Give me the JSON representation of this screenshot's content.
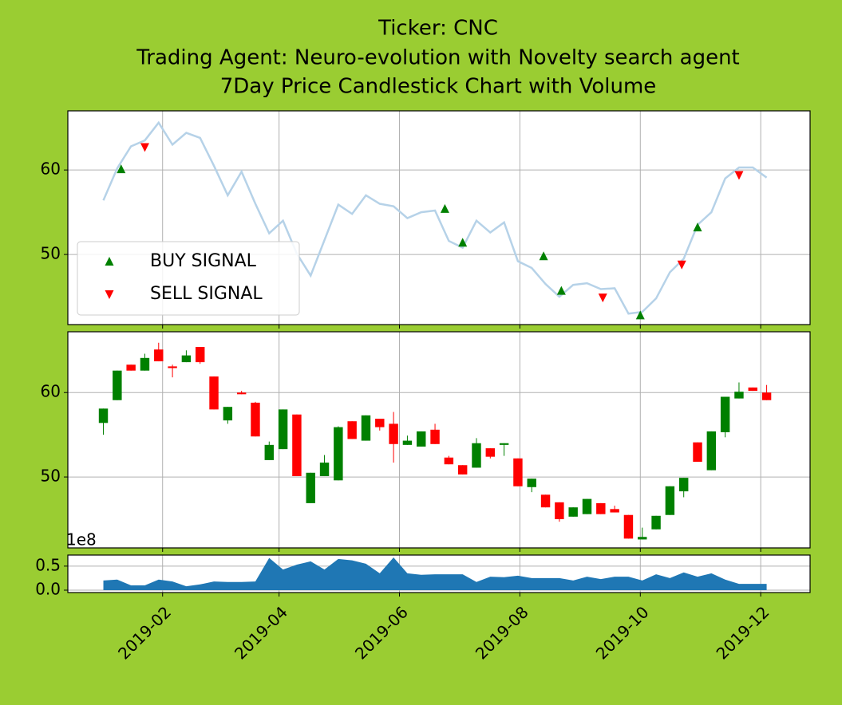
{
  "chart_data": [
    {
      "type": "line",
      "title": [
        "Ticker: CNC",
        "Trading Agent: Neuro-evolution with Novelty search agent",
        "7Day Price Candlestick Chart with Volume"
      ],
      "x": [
        1,
        8,
        15,
        22,
        29,
        36,
        43,
        50,
        57,
        64,
        71,
        78,
        85,
        92,
        99,
        106,
        113,
        120,
        127,
        134,
        141,
        148,
        155,
        162,
        169,
        176,
        183,
        190,
        197,
        204,
        211,
        218,
        225,
        232,
        239,
        246,
        253,
        260,
        267,
        274,
        281,
        288,
        295,
        302,
        309,
        316,
        323,
        330,
        337
      ],
      "values": [
        56.4,
        60.2,
        62.8,
        63.5,
        65.6,
        63.0,
        64.4,
        63.8,
        60.5,
        57.0,
        59.8,
        56.0,
        52.5,
        54.0,
        50.1,
        47.5,
        51.7,
        55.9,
        54.8,
        57.0,
        56.0,
        55.7,
        54.3,
        55.0,
        55.2,
        51.6,
        50.8,
        54.0,
        52.6,
        53.8,
        49.2,
        48.4,
        46.5,
        45.0,
        46.4,
        46.6,
        45.9,
        46.0,
        43.0,
        43.2,
        44.8,
        47.9,
        49.5,
        53.5,
        55.0,
        59.0,
        60.3,
        60.3,
        59.1
      ],
      "color": "#b6d2e8",
      "ylim": [
        41.7,
        67
      ],
      "yticks": [
        50,
        60
      ],
      "grid": true,
      "legend": "lower left",
      "series": [
        {
          "name": "BUY SIGNAL",
          "color": "#008000",
          "marker": "^",
          "x": [
            10,
            174,
            183,
            224,
            233,
            273,
            302
          ],
          "values": [
            60.1,
            55.4,
            51.4,
            49.8,
            45.7,
            42.8,
            53.2
          ]
        },
        {
          "name": "SELL SIGNAL",
          "color": "#ff0000",
          "marker": "v",
          "x": [
            22,
            254,
            294,
            323
          ],
          "values": [
            62.7,
            44.9,
            48.8,
            59.4
          ]
        }
      ]
    },
    {
      "type": "candlestick",
      "x": [
        1,
        8,
        15,
        22,
        29,
        36,
        43,
        50,
        57,
        64,
        71,
        78,
        85,
        92,
        99,
        106,
        113,
        120,
        127,
        134,
        141,
        148,
        155,
        162,
        169,
        176,
        183,
        190,
        197,
        204,
        211,
        218,
        225,
        232,
        239,
        246,
        253,
        260,
        267,
        274,
        281,
        288,
        295,
        302,
        309,
        316,
        323,
        330,
        337
      ],
      "open": [
        56.4,
        59.1,
        63.3,
        62.6,
        65.1,
        63.1,
        63.6,
        65.4,
        61.9,
        56.7,
        60.0,
        58.8,
        52.0,
        53.3,
        57.4,
        46.9,
        50.1,
        49.6,
        56.6,
        54.3,
        56.9,
        56.3,
        53.8,
        53.6,
        55.6,
        52.3,
        51.4,
        51.1,
        53.4,
        53.8,
        52.2,
        48.8,
        47.9,
        47.0,
        45.3,
        45.6,
        46.9,
        46.2,
        45.5,
        42.6,
        43.8,
        45.5,
        48.3,
        54.1,
        50.8,
        55.3,
        59.3,
        60.6,
        60.0
      ],
      "high": [
        58.1,
        62.6,
        63.3,
        64.6,
        65.9,
        63.3,
        65.0,
        65.4,
        61.9,
        58.3,
        60.2,
        58.9,
        54.2,
        58.0,
        57.4,
        50.5,
        52.6,
        56.0,
        56.6,
        57.3,
        56.9,
        57.7,
        54.9,
        55.4,
        56.3,
        52.5,
        51.4,
        54.6,
        53.4,
        54.0,
        52.2,
        49.8,
        47.9,
        47.0,
        46.4,
        47.4,
        46.9,
        46.6,
        45.5,
        44.0,
        45.4,
        48.9,
        49.9,
        54.1,
        55.4,
        59.5,
        61.2,
        60.6,
        60.9
      ],
      "low": [
        55.0,
        59.1,
        62.6,
        62.6,
        63.7,
        61.8,
        63.6,
        63.4,
        58.0,
        56.3,
        59.8,
        54.8,
        52.0,
        53.3,
        50.1,
        46.9,
        50.1,
        49.6,
        54.5,
        54.3,
        55.5,
        51.7,
        53.8,
        53.6,
        53.9,
        51.5,
        50.3,
        51.1,
        52.2,
        52.5,
        48.9,
        48.2,
        46.4,
        44.7,
        45.3,
        45.6,
        45.6,
        45.8,
        42.7,
        42.6,
        43.8,
        45.5,
        47.6,
        51.8,
        50.8,
        54.7,
        59.3,
        60.2,
        59.1
      ],
      "close": [
        58.1,
        62.6,
        62.6,
        64.1,
        63.7,
        62.9,
        64.4,
        63.6,
        58.0,
        58.3,
        59.8,
        54.8,
        53.8,
        58.0,
        50.1,
        50.5,
        51.7,
        55.9,
        54.5,
        57.3,
        55.9,
        53.9,
        54.3,
        55.4,
        53.9,
        51.5,
        50.3,
        54.0,
        52.4,
        54.0,
        48.9,
        49.8,
        46.4,
        45.0,
        46.4,
        47.4,
        45.6,
        45.8,
        42.7,
        42.9,
        45.4,
        48.9,
        49.9,
        51.8,
        55.4,
        59.5,
        60.1,
        60.2,
        59.1
      ],
      "up_color": "#008000",
      "down_color": "#ff0000",
      "ylim": [
        41.6,
        67.2
      ],
      "yticks": [
        50,
        60
      ],
      "grid": true
    },
    {
      "type": "area",
      "x": [
        1,
        8,
        15,
        22,
        29,
        36,
        43,
        50,
        57,
        64,
        71,
        78,
        85,
        92,
        99,
        106,
        113,
        120,
        127,
        134,
        141,
        148,
        155,
        162,
        169,
        176,
        183,
        190,
        197,
        204,
        211,
        218,
        225,
        232,
        239,
        246,
        253,
        260,
        267,
        274,
        281,
        288,
        295,
        302,
        309,
        316,
        323,
        330,
        337
      ],
      "values": [
        0.2,
        0.22,
        0.1,
        0.1,
        0.22,
        0.18,
        0.08,
        0.12,
        0.18,
        0.17,
        0.17,
        0.18,
        0.67,
        0.43,
        0.53,
        0.6,
        0.43,
        0.65,
        0.62,
        0.55,
        0.35,
        0.68,
        0.35,
        0.32,
        0.33,
        0.33,
        0.33,
        0.17,
        0.28,
        0.27,
        0.3,
        0.25,
        0.25,
        0.25,
        0.2,
        0.28,
        0.23,
        0.28,
        0.28,
        0.2,
        0.33,
        0.25,
        0.37,
        0.28,
        0.35,
        0.22,
        0.13,
        0.13,
        0.13
      ],
      "color": "#1f77b4",
      "offset_label": "1e8",
      "ylim": [
        -0.05,
        0.73
      ],
      "yticks": [
        {
          "value": 0,
          "label": "0.0"
        },
        0.5
      ],
      "grid": true,
      "xlim": [
        -17,
        359
      ],
      "xticks": [
        {
          "value": 31,
          "label": "2019-02"
        },
        {
          "value": 90,
          "label": "2019-04"
        },
        {
          "value": 151,
          "label": "2019-06"
        },
        {
          "value": 212,
          "label": "2019-08"
        },
        {
          "value": 273,
          "label": "2019-10"
        },
        {
          "value": 334,
          "label": "2019-12"
        }
      ]
    }
  ]
}
